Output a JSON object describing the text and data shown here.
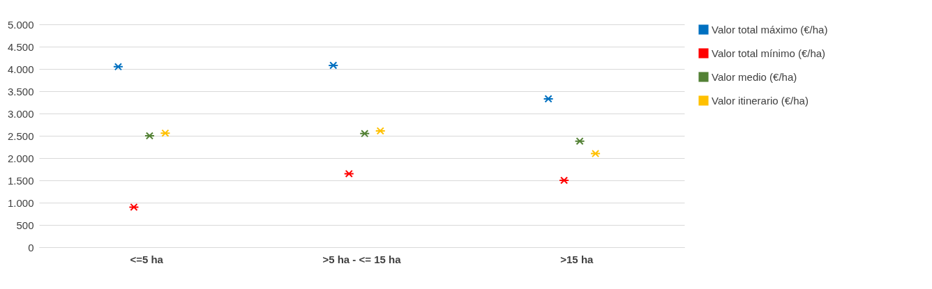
{
  "chart_data": {
    "type": "scatter",
    "categories": [
      "<=5 ha",
      ">5 ha - <= 15 ha",
      ">15 ha"
    ],
    "series": [
      {
        "name": "Valor total máximo (€/ha)",
        "color": "#0070c0",
        "values": [
          4050,
          4080,
          3330
        ]
      },
      {
        "name": "Valor total mínimo (€/ha)",
        "color": "#ff0000",
        "values": [
          900,
          1650,
          1500
        ]
      },
      {
        "name": "Valor medio (€/ha)",
        "color": "#538135",
        "values": [
          2500,
          2550,
          2380
        ]
      },
      {
        "name": "Valor itinerario (€/ha)",
        "color": "#ffc000",
        "values": [
          2560,
          2610,
          2100
        ]
      }
    ],
    "ylim": [
      0,
      5000
    ],
    "yticks": [
      0,
      {
        "value": 500,
        "label": "500"
      },
      {
        "value": 1000,
        "label": "1.000"
      },
      {
        "value": 1500,
        "label": "1.500"
      },
      {
        "value": 2000,
        "label": "2.000"
      },
      {
        "value": 2500,
        "label": "2.500"
      },
      {
        "value": 3000,
        "label": "3.000"
      },
      {
        "value": 3500,
        "label": "3.500"
      },
      {
        "value": 4000,
        "label": "4.000"
      },
      {
        "value": 4500,
        "label": "4.500"
      },
      {
        "value": 5000,
        "label": "5.000"
      }
    ],
    "grid": "y",
    "legend": "right",
    "marker": "cross"
  }
}
